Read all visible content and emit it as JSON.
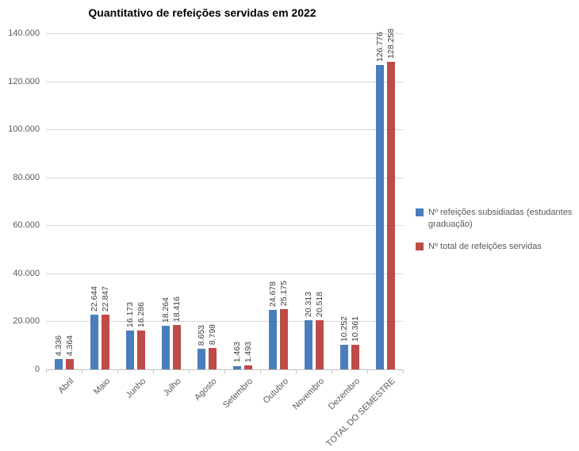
{
  "title": "Quantitativo de refeições servidas em 2022",
  "chart_data": {
    "type": "bar",
    "title": "Quantitativo de refeições servidas em 2022",
    "categories": [
      "Abril",
      "Maio",
      "Junho",
      "Julho",
      "Agosto",
      "Setembro",
      "Outubro",
      "Novembro",
      "Dezembro",
      "TOTAL DO SEMESTRE"
    ],
    "series": [
      {
        "name": "Nº refeições subsidiadas (estudantes graduação)",
        "color": "#4A7EBB",
        "values": [
          4336,
          22644,
          16173,
          18264,
          8653,
          1463,
          24678,
          20313,
          10252,
          126776
        ],
        "labels": [
          "4.336",
          "22.644",
          "16.173",
          "18.264",
          "8.653",
          "1.463",
          "24.678",
          "20.313",
          "10.252",
          "126.776"
        ]
      },
      {
        "name": "Nº total de refeições servidas",
        "color": "#BE4B48",
        "values": [
          4364,
          22847,
          16286,
          18416,
          8798,
          1493,
          25175,
          20518,
          10361,
          128258
        ],
        "labels": [
          "4.364",
          "22.847",
          "16.286",
          "18.416",
          "8.798",
          "1.493",
          "25.175",
          "20.518",
          "10.361",
          "128.258"
        ]
      }
    ],
    "ylim": [
      0,
      140000
    ],
    "ytick_step": 20000,
    "ytick_labels": [
      "0",
      "20.000",
      "40.000",
      "60.000",
      "80.000",
      "100.000",
      "120.000",
      "140.000"
    ],
    "grid": true,
    "data_labels_rotated_vertical": true,
    "legend_position": "right"
  },
  "colors": {
    "gridline": "#D9D9D9",
    "axis_line": "#BFBFBF",
    "tick_text": "#595959",
    "data_label_text": "#404040",
    "title_text": "#000000",
    "background": "#FFFFFF"
  }
}
